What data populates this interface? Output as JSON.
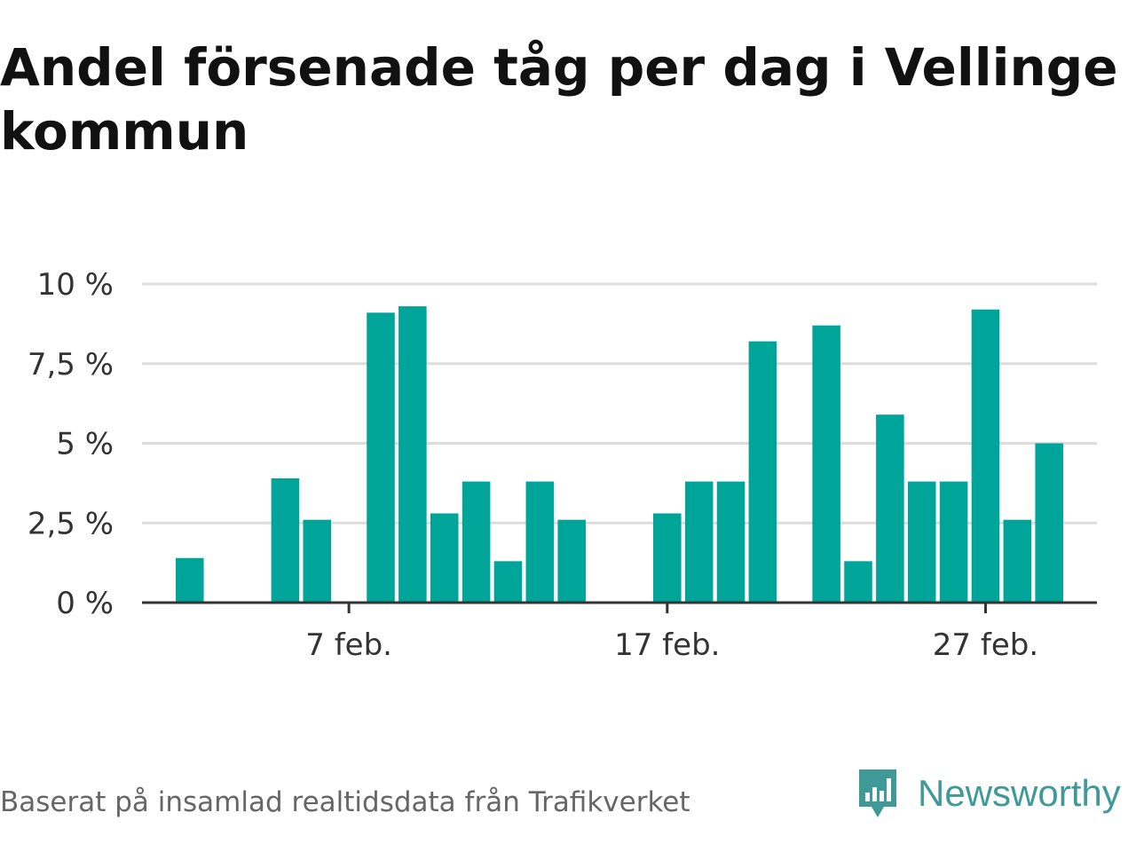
{
  "title": "Andel försenade tåg per dag i Vellinge kommun",
  "footer": {
    "source": "Baserat på insamlad realtidsdata från Trafikverket",
    "brand": "Newsworthy",
    "brand_icon": "bar-chart-speech-bubble-icon"
  },
  "colors": {
    "bar": "#00a59a",
    "axis": "#333333",
    "grid": "#dddddd",
    "title": "#111111",
    "brand": "#3f9a97"
  },
  "chart_data": {
    "type": "bar",
    "title": "Andel försenade tåg per dag i Vellinge kommun",
    "x_unit": "day of February",
    "x": [
      1,
      2,
      3,
      4,
      5,
      6,
      7,
      8,
      9,
      10,
      11,
      12,
      13,
      14,
      15,
      16,
      17,
      18,
      19,
      20,
      21,
      22,
      23,
      24,
      25,
      26,
      27,
      28,
      29
    ],
    "values": [
      null,
      1.4,
      null,
      null,
      3.9,
      2.6,
      null,
      9.1,
      9.3,
      2.8,
      3.8,
      1.3,
      3.8,
      2.6,
      null,
      null,
      2.8,
      3.8,
      3.8,
      8.2,
      null,
      8.7,
      1.3,
      5.9,
      3.8,
      3.8,
      9.2,
      2.6,
      5.0
    ],
    "y_ticks": [
      0,
      2.5,
      5,
      7.5,
      10
    ],
    "y_tick_labels": [
      "0 %",
      "2,5 %",
      "5 %",
      "7,5 %",
      "10 %"
    ],
    "x_tick_values": [
      7,
      17,
      27
    ],
    "x_tick_labels": [
      "7 feb.",
      "17 feb.",
      "27 feb."
    ],
    "ylim": [
      0,
      10
    ],
    "xlim": [
      0.5,
      30.5
    ],
    "grid": true,
    "legend": "none"
  }
}
